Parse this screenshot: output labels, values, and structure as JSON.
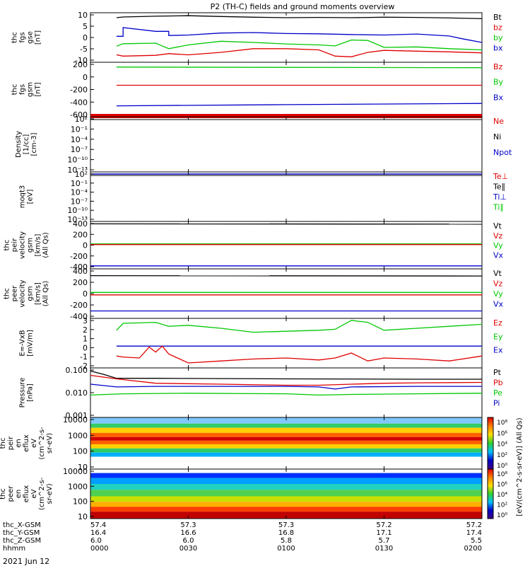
{
  "chart_data": {
    "type": "line",
    "title": "P2 (TH-C) fields and ground moments overview",
    "x_ticks": [
      "0000",
      "0030",
      "0100",
      "0130",
      "0200"
    ],
    "xlim": [
      0,
      120
    ],
    "footer": {
      "rows": [
        {
          "label": "thc_X-GSM",
          "values": [
            "57.4",
            "57.3",
            "57.3",
            "57.2",
            "57.2"
          ]
        },
        {
          "label": "thc_Y-GSM",
          "values": [
            "16.4",
            "16.6",
            "16.8",
            "17.1",
            "17.4"
          ]
        },
        {
          "label": "thc_Z-GSM",
          "values": [
            "6.0",
            "6.0",
            "5.8",
            "5.7",
            "5.5"
          ]
        },
        {
          "label": "hhmm",
          "values": [
            "0000",
            "0030",
            "0100",
            "0130",
            "0200"
          ]
        }
      ],
      "date": "2021 Jun 12"
    },
    "panels": [
      {
        "id": "fgs",
        "ylabel": [
          "thc",
          "fgs",
          "gse",
          "[nT]"
        ],
        "ylim": [
          -10,
          10
        ],
        "yticks": [
          "10",
          "5",
          "0",
          "-5",
          "-10"
        ],
        "legend": [
          {
            "text": "Bt",
            "color": "#000000"
          },
          {
            "text": "bz",
            "color": "#e00000"
          },
          {
            "text": "by",
            "color": "#00c800"
          },
          {
            "text": "bx",
            "color": "#0000c8"
          }
        ],
        "series": [
          {
            "name": "Bt",
            "color": "#000000",
            "x": [
              8,
              10,
              20,
              30,
              40,
              50,
              60,
              70,
              80,
              90,
              100,
              110,
              120
            ],
            "y": [
              8.0,
              8.3,
              8.6,
              8.8,
              8.5,
              8.2,
              8.0,
              8.1,
              8.0,
              8.2,
              8.1,
              7.9,
              7.6
            ]
          },
          {
            "name": "bx",
            "color": "#0000c8",
            "x": [
              8,
              10,
              10.01,
              20,
              24,
              24.01,
              30,
              40,
              50,
              60,
              70,
              80,
              90,
              100,
              110,
              114,
              120
            ],
            "y": [
              0.5,
              0.5,
              4.0,
              2.5,
              2.5,
              0.8,
              1.0,
              1.8,
              2.0,
              1.6,
              1.5,
              1.2,
              1.0,
              1.4,
              0.6,
              -0.5,
              -2.0
            ]
          },
          {
            "name": "by",
            "color": "#00c800",
            "x": [
              8,
              10,
              20,
              24,
              30,
              40,
              50,
              60,
              70,
              75,
              80,
              85,
              90,
              100,
              110,
              120
            ],
            "y": [
              -3.5,
              -2.5,
              -2.3,
              -4.5,
              -3.0,
              -1.5,
              -2.0,
              -2.6,
              -3.0,
              -3.4,
              -1.0,
              -1.2,
              -4.0,
              -3.8,
              -4.5,
              -5.0
            ]
          },
          {
            "name": "bz",
            "color": "#e00000",
            "x": [
              8,
              10,
              20,
              24,
              30,
              40,
              50,
              60,
              70,
              75,
              80,
              85,
              90,
              100,
              110,
              120
            ],
            "y": [
              -7.0,
              -7.5,
              -7.2,
              -6.5,
              -7.0,
              -6.0,
              -4.5,
              -4.5,
              -5.0,
              -7.5,
              -7.8,
              -6.0,
              -5.2,
              -5.5,
              -5.8,
              -6.2
            ]
          }
        ]
      },
      {
        "id": "fgs_gsm",
        "ylabel": [
          "thc",
          "fgs",
          "gsm",
          "[nT]"
        ],
        "ylim": [
          -700,
          200
        ],
        "yticks": [
          "200",
          "0",
          "-200",
          "-400",
          "-600"
        ],
        "legend": [
          {
            "text": "Bz",
            "color": "#e00000"
          },
          {
            "text": "By",
            "color": "#00c800"
          },
          {
            "text": "Bx",
            "color": "#0000c8"
          }
        ],
        "series": [
          {
            "name": "By",
            "color": "#00c800",
            "x": [
              8,
              120
            ],
            "y": [
              120,
              110
            ]
          },
          {
            "name": "Bz",
            "color": "#e00000",
            "x": [
              8,
              120
            ],
            "y": [
              -180,
              -180
            ]
          },
          {
            "name": "Bx",
            "color": "#0000c8",
            "x": [
              8,
              60,
              120
            ],
            "y": [
              -520,
              -500,
              -480
            ]
          }
        ]
      },
      {
        "id": "density",
        "ylabel": [
          "Density",
          "[1/cc]",
          "[cm-3]"
        ],
        "yticks": [
          "10²",
          "10⁻¹",
          "10⁻⁴",
          "10⁻⁷",
          "10⁻¹⁰",
          "10⁻¹³"
        ],
        "legend": [
          {
            "text": "Ne",
            "color": "#e00000"
          },
          {
            "text": "Ni",
            "color": "#000000"
          },
          {
            "text": "Npot",
            "color": "#0000c8"
          }
        ]
      },
      {
        "id": "temp",
        "ylabel": [
          "moqt3",
          "[eV]"
        ],
        "yticks": [
          "10²",
          "10⁻¹",
          "10⁻⁴",
          "10⁻⁷",
          "10⁻¹⁰",
          "10⁻¹³"
        ],
        "legend": [
          {
            "text": "Te⊥",
            "color": "#e00000"
          },
          {
            "text": "Te∥",
            "color": "#000000"
          },
          {
            "text": "Ti⊥",
            "color": "#0000c8"
          },
          {
            "text": "Ti∥",
            "color": "#00c800"
          }
        ]
      },
      {
        "id": "peir_vel",
        "ylabel": [
          "thc",
          "peir",
          "velocity",
          "gsm",
          "[km/s]",
          "(All Qs)"
        ],
        "ylim": [
          -400,
          400
        ],
        "yticks": [
          "400",
          "200",
          "0",
          "-200",
          "-400"
        ],
        "legend": [
          {
            "text": "Vt",
            "color": "#000000"
          },
          {
            "text": "Vz",
            "color": "#e00000"
          },
          {
            "text": "Vy",
            "color": "#00c800"
          },
          {
            "text": "Vx",
            "color": "#0000c8"
          }
        ],
        "series": [
          {
            "name": "Vt",
            "color": "#000000",
            "x": [
              0,
              120
            ],
            "y": [
              360,
              355
            ]
          },
          {
            "name": "Vy",
            "color": "#00c800",
            "x": [
              0,
              120
            ],
            "y": [
              20,
              20
            ]
          },
          {
            "name": "Vz",
            "color": "#e00000",
            "x": [
              0,
              120
            ],
            "y": [
              10,
              10
            ]
          },
          {
            "name": "Vx",
            "color": "#0000c8",
            "x": [
              0,
              120
            ],
            "y": [
              -350,
              -350
            ]
          }
        ]
      },
      {
        "id": "peer_vel",
        "ylabel": [
          "thc",
          "peer",
          "velocity",
          "gsm",
          "[km/s]",
          "(All Qs)"
        ],
        "ylim": [
          -400,
          400
        ],
        "yticks": [
          "400",
          "200",
          "0",
          "-200",
          "-400"
        ],
        "legend": [
          {
            "text": "Vt",
            "color": "#000000"
          },
          {
            "text": "Vz",
            "color": "#e00000"
          },
          {
            "text": "Vy",
            "color": "#00c800"
          },
          {
            "text": "Vx",
            "color": "#0000c8"
          }
        ],
        "series": [
          {
            "name": "Vt",
            "color": "#000000",
            "x": [
              0,
              120
            ],
            "y": [
              290,
              285
            ]
          },
          {
            "name": "Vy",
            "color": "#00c800",
            "x": [
              0,
              120
            ],
            "y": [
              20,
              20
            ]
          },
          {
            "name": "Vz",
            "color": "#e00000",
            "x": [
              0,
              120
            ],
            "y": [
              -20,
              -20
            ]
          },
          {
            "name": "Vx",
            "color": "#0000c8",
            "x": [
              0,
              120
            ],
            "y": [
              -280,
              -280
            ]
          }
        ]
      },
      {
        "id": "efield",
        "ylabel": [
          "E=-VxB",
          "[mV/m]"
        ],
        "ylim": [
          -2,
          3
        ],
        "yticks": [
          "3",
          "2",
          "1",
          "0",
          "-1",
          "-2"
        ],
        "legend": [
          {
            "text": "Ez",
            "color": "#e00000"
          },
          {
            "text": "Ey",
            "color": "#00c800"
          },
          {
            "text": "Ex",
            "color": "#0000c8"
          }
        ],
        "series": [
          {
            "name": "Ey",
            "color": "#00c800",
            "x": [
              8,
              10,
              20,
              24,
              30,
              40,
              50,
              60,
              70,
              75,
              80,
              85,
              90,
              100,
              110,
              120
            ],
            "y": [
              1.8,
              2.5,
              2.6,
              2.2,
              2.3,
              2.0,
              1.6,
              1.7,
              1.8,
              1.9,
              2.8,
              2.6,
              1.8,
              2.0,
              2.2,
              2.4
            ]
          },
          {
            "name": "Ex",
            "color": "#0000c8",
            "x": [
              8,
              120
            ],
            "y": [
              0.2,
              0.2
            ]
          },
          {
            "name": "Ez",
            "color": "#e00000",
            "x": [
              8,
              10,
              15,
              18,
              20,
              22,
              24,
              30,
              40,
              50,
              60,
              70,
              75,
              80,
              85,
              90,
              100,
              110,
              120
            ],
            "y": [
              -0.8,
              -0.9,
              -1.0,
              0.1,
              -0.4,
              0.2,
              -0.6,
              -1.5,
              -1.3,
              -1.1,
              -1.0,
              -1.2,
              -1.0,
              -0.5,
              -1.3,
              -1.0,
              -1.1,
              -1.3,
              -0.8
            ]
          }
        ]
      },
      {
        "id": "pressure",
        "ylabel": [
          "Pressure",
          "[nPa]"
        ],
        "ylim": [
          0.001,
          0.1
        ],
        "yscale": "log",
        "yticks": [
          "0.100",
          "0.010",
          "0.001"
        ],
        "legend": [
          {
            "text": "Pt",
            "color": "#000000"
          },
          {
            "text": "Pb",
            "color": "#e00000"
          },
          {
            "text": "Pe",
            "color": "#00c800"
          },
          {
            "text": "Pi",
            "color": "#0000c8"
          }
        ],
        "series": [
          {
            "name": "Pt",
            "color": "#000000",
            "x": [
              0,
              4,
              8,
              20,
              60,
              100,
              120
            ],
            "y": [
              0.075,
              0.055,
              0.038,
              0.038,
              0.036,
              0.035,
              0.035
            ]
          },
          {
            "name": "Pb",
            "color": "#e00000",
            "x": [
              0,
              8,
              20,
              40,
              60,
              70,
              80,
              90,
              100,
              120
            ],
            "y": [
              0.05,
              0.036,
              0.024,
              0.022,
              0.02,
              0.02,
              0.022,
              0.024,
              0.025,
              0.026
            ]
          },
          {
            "name": "Pi",
            "color": "#0000c8",
            "x": [
              0,
              8,
              20,
              40,
              60,
              70,
              75,
              80,
              100,
              120
            ],
            "y": [
              0.022,
              0.017,
              0.018,
              0.018,
              0.018,
              0.017,
              0.014,
              0.017,
              0.018,
              0.018
            ]
          },
          {
            "name": "Pe",
            "color": "#00c800",
            "x": [
              0,
              10,
              30,
              60,
              70,
              80,
              100,
              120
            ],
            "y": [
              0.008,
              0.009,
              0.0095,
              0.009,
              0.008,
              0.0085,
              0.009,
              0.0095
            ]
          }
        ]
      },
      {
        "id": "peir_spec",
        "ylabel": [
          "thc",
          "peir",
          "en",
          "eflux",
          "eV",
          "(cm^2-s-",
          "sr-eV)"
        ],
        "yticks": [
          "10000",
          "1000",
          "100",
          "10"
        ],
        "colorbar": {
          "label": "[eV/(cm^2-s-sr-eV)] (All Qs)",
          "ticks": [
            "10⁸",
            "10⁶",
            "10⁴",
            "10²",
            "10⁰"
          ]
        }
      },
      {
        "id": "peer_spec",
        "ylabel": [
          "thc",
          "peer",
          "en",
          "eflux",
          "eV",
          "(cm^2-s-",
          "sr-eV)"
        ],
        "yticks": [
          "10000",
          "1000",
          "100",
          "10"
        ],
        "colorbar": {
          "label": "[eV/(cm^2-s-sr-eV)] (All Qs)",
          "ticks": [
            "10⁸",
            "10⁶",
            "10⁴",
            "10²",
            "10⁰"
          ]
        }
      }
    ]
  }
}
